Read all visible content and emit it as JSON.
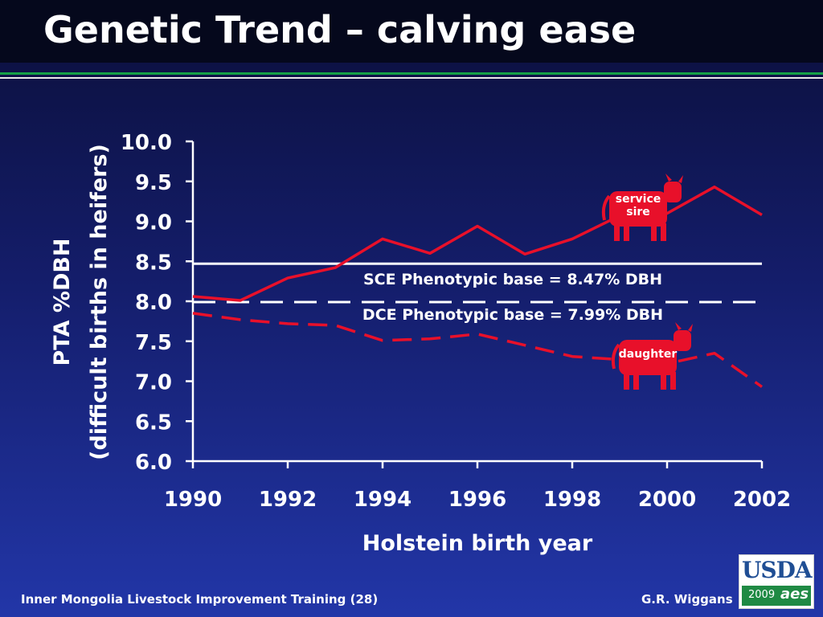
{
  "slide": {
    "title": "Genetic Trend – calving ease",
    "footer_left": "Inner Mongolia Livestock Improvement Training (28)",
    "footer_right": "G.R. Wiggans",
    "logo": {
      "text": "USDA",
      "year": "2009",
      "mark": "aes"
    }
  },
  "chart_data": {
    "type": "line",
    "title": "",
    "xlabel": "Holstein birth year",
    "ylabel": "PTA %DBH",
    "ylabel_sub": "(difficult births in heifers)",
    "xlim": [
      1990,
      2002
    ],
    "ylim": [
      6.0,
      10.0
    ],
    "xticks": [
      "1990",
      "1992",
      "1994",
      "1996",
      "1998",
      "2000",
      "2002"
    ],
    "xtick_values": [
      1990,
      1992,
      1994,
      1996,
      1998,
      2000,
      2002
    ],
    "yticks": [
      "6.0",
      "6.5",
      "7.0",
      "7.5",
      "8.0",
      "8.5",
      "9.0",
      "9.5",
      "10.0"
    ],
    "ytick_values": [
      6.0,
      6.5,
      7.0,
      7.5,
      8.0,
      8.5,
      9.0,
      9.5,
      10.0
    ],
    "grid": false,
    "series": [
      {
        "name": "service sire",
        "style": "solid",
        "color": "#e8102a",
        "x": [
          1990,
          1991,
          1992,
          1993,
          1994,
          1995,
          1996,
          1997,
          1998,
          1999,
          2000,
          2001,
          2002
        ],
        "values": [
          8.06,
          8.01,
          8.29,
          8.42,
          8.78,
          8.6,
          8.94,
          8.59,
          8.78,
          9.07,
          9.1,
          9.43,
          9.08
        ]
      },
      {
        "name": "daughter",
        "style": "dashed",
        "color": "#e8102a",
        "x": [
          1990,
          1991,
          1992,
          1993,
          1994,
          1995,
          1996,
          1997,
          1998,
          1999,
          2000,
          2001,
          2002
        ],
        "values": [
          7.85,
          7.77,
          7.72,
          7.7,
          7.51,
          7.53,
          7.59,
          7.45,
          7.31,
          7.27,
          7.22,
          7.35,
          6.93
        ]
      }
    ],
    "reference_lines": [
      {
        "label": "SCE Phenotypic base = 8.47% DBH",
        "value": 8.47,
        "style": "solid",
        "color": "#ffffff"
      },
      {
        "label": "DCE Phenotypic base = 7.99% DBH",
        "value": 7.99,
        "style": "dashed",
        "color": "#ffffff"
      }
    ],
    "annotations": [
      {
        "label": "service\nsire",
        "icon": "cow-icon",
        "series": "service sire"
      },
      {
        "label": "daughter",
        "icon": "cow-icon",
        "series": "daughter"
      }
    ]
  }
}
